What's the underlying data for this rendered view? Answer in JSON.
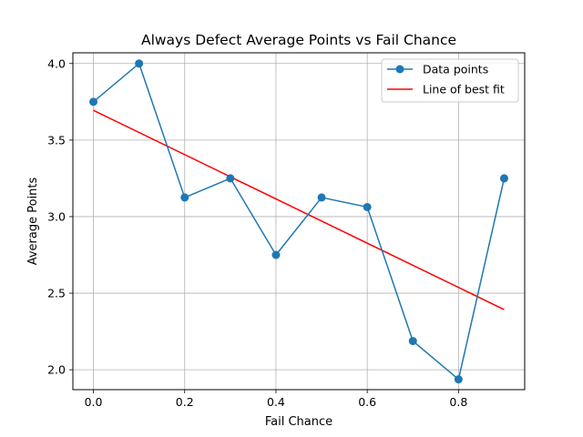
{
  "chart_data": {
    "type": "line",
    "title": "Always Defect Average Points vs Fail Chance",
    "xlabel": "Fail Chance",
    "ylabel": "Average Points",
    "xlim": [
      -0.045,
      0.945
    ],
    "ylim": [
      1.87,
      4.07
    ],
    "xticks": [
      0.0,
      0.2,
      0.4,
      0.6,
      0.8
    ],
    "xtick_labels": [
      "0.0",
      "0.2",
      "0.4",
      "0.6",
      "0.8"
    ],
    "yticks": [
      2.0,
      2.5,
      3.0,
      3.5,
      4.0
    ],
    "ytick_labels": [
      "2.0",
      "2.5",
      "3.0",
      "3.5",
      "4.0"
    ],
    "grid": true,
    "legend_position": "top-right",
    "series": [
      {
        "name": "Data points",
        "kind": "line-with-markers",
        "color": "#1f77b4",
        "x": [
          0.0,
          0.1,
          0.2,
          0.3,
          0.4,
          0.5,
          0.6,
          0.7,
          0.8,
          0.9
        ],
        "y": [
          3.75,
          4.0,
          3.125,
          3.25,
          2.75,
          3.125,
          3.0625,
          2.1875,
          1.9375,
          3.25
        ]
      },
      {
        "name": "Line of best fit",
        "kind": "line",
        "color": "#ff0000",
        "x": [
          0.0,
          0.9
        ],
        "y": [
          3.694,
          2.393
        ]
      }
    ]
  }
}
